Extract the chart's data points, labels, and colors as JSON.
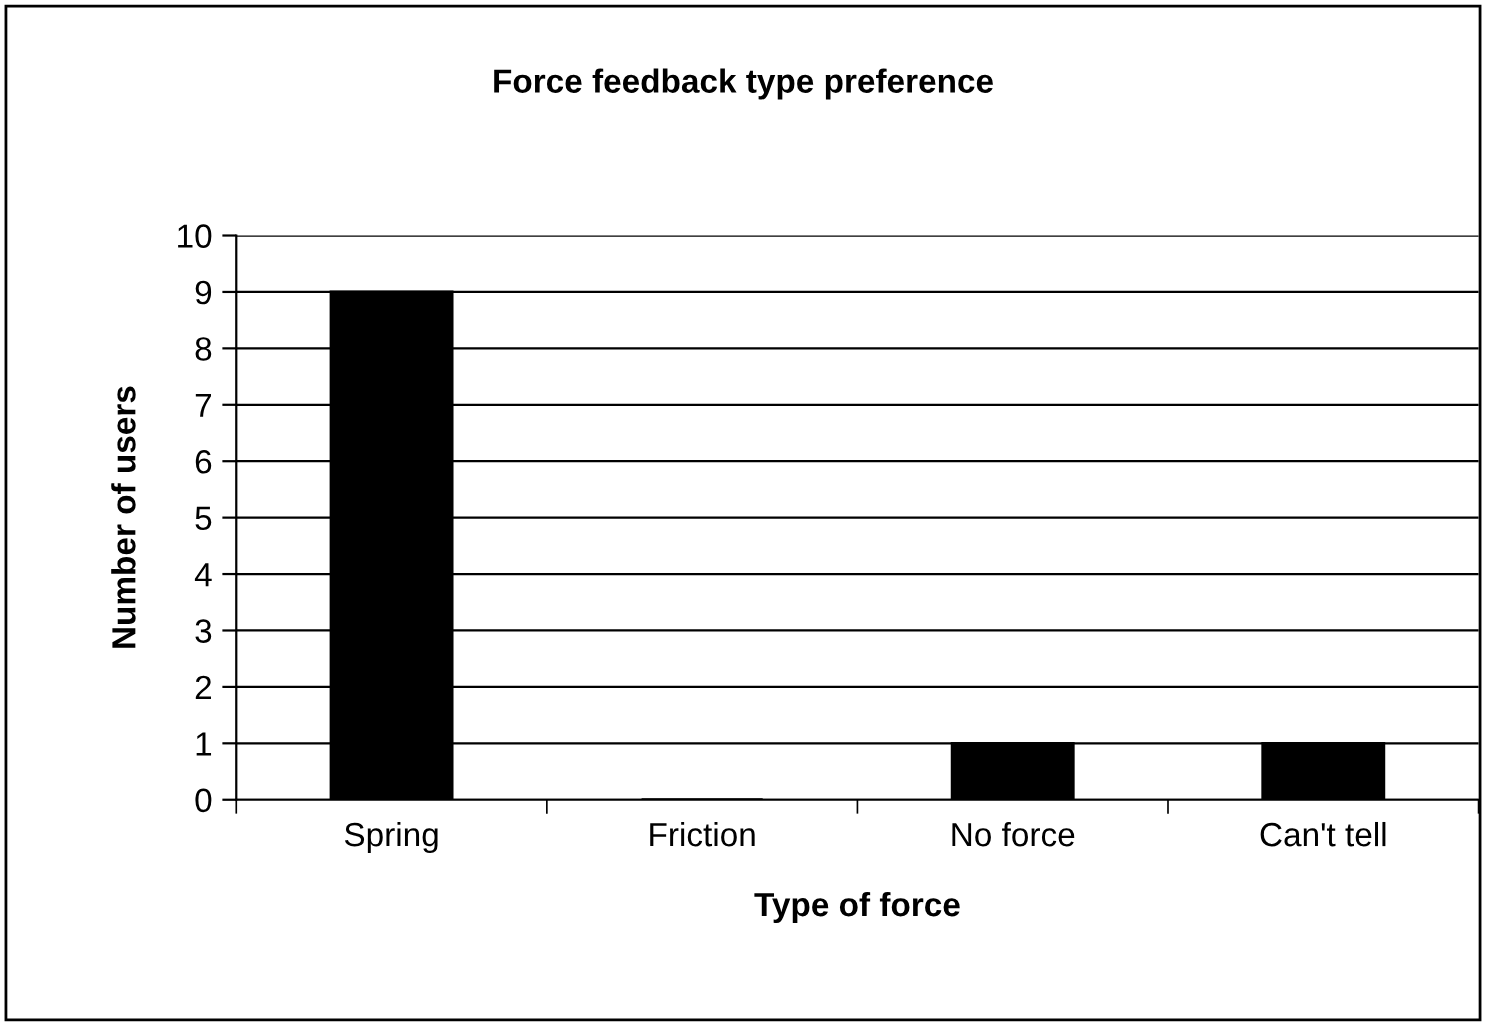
{
  "chart_data": {
    "type": "bar",
    "title": "Force feedback type preference",
    "xlabel": "Type of force",
    "ylabel": "Number of users",
    "categories": [
      "Spring",
      "Friction",
      "No force",
      "Can't tell"
    ],
    "values": [
      9,
      0,
      1,
      1
    ],
    "color": "#000000",
    "ylim": [
      0,
      10
    ],
    "yticks": [
      0,
      1,
      2,
      3,
      4,
      5,
      6,
      7,
      8,
      9,
      10
    ],
    "grid": "y",
    "legend": false
  }
}
